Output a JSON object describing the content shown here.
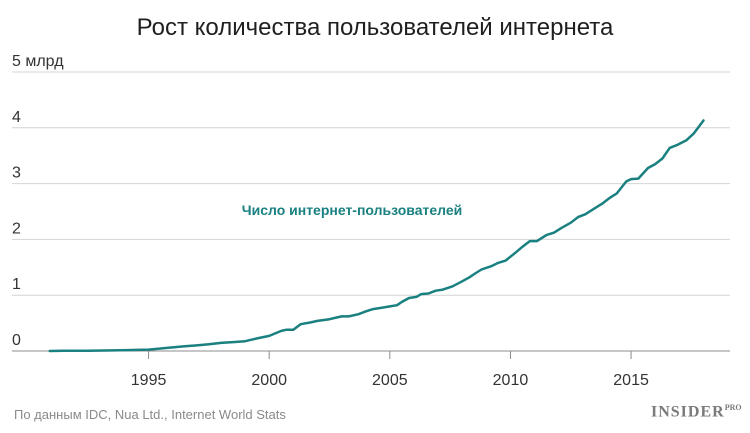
{
  "header": {
    "title": "Рост количества пользователей интернета"
  },
  "footer": {
    "source": "По данным IDC, Nua Ltd., Internet World Stats",
    "brand": "INSIDER",
    "brand_suffix": "PRO"
  },
  "chart_data": {
    "type": "line",
    "title": "Рост количества пользователей интернета",
    "xlim": [
      1990.5,
      2019.1
    ],
    "ylim": [
      0,
      5
    ],
    "y_ticks": [
      {
        "value": 0,
        "label": "0"
      },
      {
        "value": 1,
        "label": "1"
      },
      {
        "value": 2,
        "label": "2"
      },
      {
        "value": 3,
        "label": "3"
      },
      {
        "value": 4,
        "label": "4"
      },
      {
        "value": 5,
        "label": "5 млрд"
      }
    ],
    "x_ticks": [
      {
        "value": 1995,
        "label": "1995"
      },
      {
        "value": 2000,
        "label": "2000"
      },
      {
        "value": 2005,
        "label": "2005"
      },
      {
        "value": 2010,
        "label": "2010"
      },
      {
        "value": 2015,
        "label": "2015"
      }
    ],
    "grid": "horizontal",
    "series": [
      {
        "name": "Число интернет-пользователей",
        "color": "#1a8080",
        "points": [
          [
            1990.9,
            0.0
          ],
          [
            1991.5,
            0.004
          ],
          [
            1992.5,
            0.006
          ],
          [
            1993.5,
            0.01
          ],
          [
            1994.5,
            0.02
          ],
          [
            1995.0,
            0.025
          ],
          [
            1995.5,
            0.045
          ],
          [
            1996.0,
            0.065
          ],
          [
            1996.5,
            0.085
          ],
          [
            1997.0,
            0.1
          ],
          [
            1997.5,
            0.12
          ],
          [
            1998.0,
            0.145
          ],
          [
            1998.5,
            0.16
          ],
          [
            1999.0,
            0.175
          ],
          [
            1999.5,
            0.225
          ],
          [
            2000.0,
            0.27
          ],
          [
            2000.3,
            0.325
          ],
          [
            2000.5,
            0.36
          ],
          [
            2000.7,
            0.38
          ],
          [
            2001.0,
            0.38
          ],
          [
            2001.3,
            0.48
          ],
          [
            2001.7,
            0.51
          ],
          [
            2002.0,
            0.54
          ],
          [
            2002.5,
            0.57
          ],
          [
            2002.8,
            0.6
          ],
          [
            2003.0,
            0.62
          ],
          [
            2003.3,
            0.62
          ],
          [
            2003.7,
            0.66
          ],
          [
            2004.0,
            0.71
          ],
          [
            2004.3,
            0.75
          ],
          [
            2004.6,
            0.77
          ],
          [
            2005.0,
            0.8
          ],
          [
            2005.3,
            0.82
          ],
          [
            2005.5,
            0.88
          ],
          [
            2005.8,
            0.95
          ],
          [
            2006.1,
            0.97
          ],
          [
            2006.3,
            1.02
          ],
          [
            2006.6,
            1.03
          ],
          [
            2006.9,
            1.08
          ],
          [
            2007.2,
            1.1
          ],
          [
            2007.6,
            1.16
          ],
          [
            2008.0,
            1.25
          ],
          [
            2008.3,
            1.32
          ],
          [
            2008.5,
            1.38
          ],
          [
            2008.8,
            1.46
          ],
          [
            2009.2,
            1.52
          ],
          [
            2009.5,
            1.58
          ],
          [
            2009.8,
            1.62
          ],
          [
            2010.2,
            1.76
          ],
          [
            2010.5,
            1.87
          ],
          [
            2010.8,
            1.97
          ],
          [
            2011.1,
            1.97
          ],
          [
            2011.5,
            2.08
          ],
          [
            2011.8,
            2.12
          ],
          [
            2012.1,
            2.2
          ],
          [
            2012.5,
            2.3
          ],
          [
            2012.8,
            2.4
          ],
          [
            2013.1,
            2.45
          ],
          [
            2013.5,
            2.56
          ],
          [
            2013.8,
            2.64
          ],
          [
            2014.1,
            2.74
          ],
          [
            2014.4,
            2.82
          ],
          [
            2014.8,
            3.04
          ],
          [
            2015.0,
            3.08
          ],
          [
            2015.3,
            3.09
          ],
          [
            2015.7,
            3.28
          ],
          [
            2016.0,
            3.35
          ],
          [
            2016.3,
            3.45
          ],
          [
            2016.6,
            3.64
          ],
          [
            2016.9,
            3.69
          ],
          [
            2017.3,
            3.78
          ],
          [
            2017.6,
            3.9
          ],
          [
            2018.0,
            4.13
          ]
        ]
      }
    ],
    "annotations": [
      {
        "text": "Число интернет-пользователей",
        "color": "#1a8080"
      }
    ]
  }
}
